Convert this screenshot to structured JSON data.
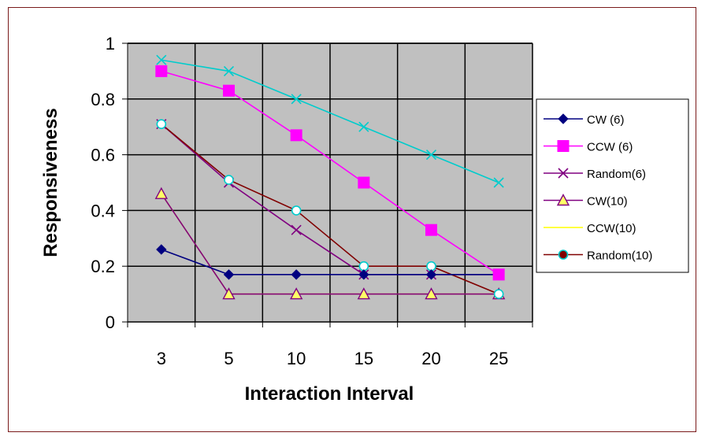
{
  "chart_data": {
    "type": "line",
    "categories": [
      "3",
      "5",
      "10",
      "15",
      "20",
      "25"
    ],
    "xlabel": "Interaction Interval",
    "ylabel": "Responsiveness",
    "ylim": [
      0,
      1
    ],
    "yticks": [
      "0",
      "0.2",
      "0.4",
      "0.6",
      "0.8",
      "1"
    ],
    "grid": true,
    "legend_position": "right",
    "plot_background": "#c0c0c0",
    "series": [
      {
        "name": "CW (6)",
        "values": [
          0.26,
          0.17,
          0.17,
          0.17,
          0.17,
          0.17
        ],
        "color": "#000080",
        "marker": "diamond"
      },
      {
        "name": "CCW (6)",
        "values": [
          0.9,
          0.83,
          0.67,
          0.5,
          0.33,
          0.17
        ],
        "color": "#ff00ff",
        "marker": "square"
      },
      {
        "name": "Random(6)",
        "values": [
          0.71,
          0.5,
          0.33,
          0.17,
          0.17,
          0.17
        ],
        "color": "#800080",
        "marker": "x"
      },
      {
        "name": "CW(10)",
        "values": [
          0.46,
          0.1,
          0.1,
          0.1,
          0.1,
          0.1
        ],
        "color": "#800080",
        "marker": "triangle"
      },
      {
        "name": "CCW(10)",
        "values": [
          0.46,
          0.1,
          0.1,
          0.1,
          0.1,
          0.1
        ],
        "color": "#ffff00",
        "marker": "none"
      },
      {
        "name": "Random(10)",
        "values": [
          0.71,
          0.51,
          0.4,
          0.2,
          0.2,
          0.1
        ],
        "color": "#800000",
        "marker": "circle"
      },
      {
        "name": "",
        "values": [
          0.94,
          0.9,
          0.8,
          0.7,
          0.6,
          0.5
        ],
        "color": "#00cccc",
        "marker": "star"
      }
    ]
  }
}
